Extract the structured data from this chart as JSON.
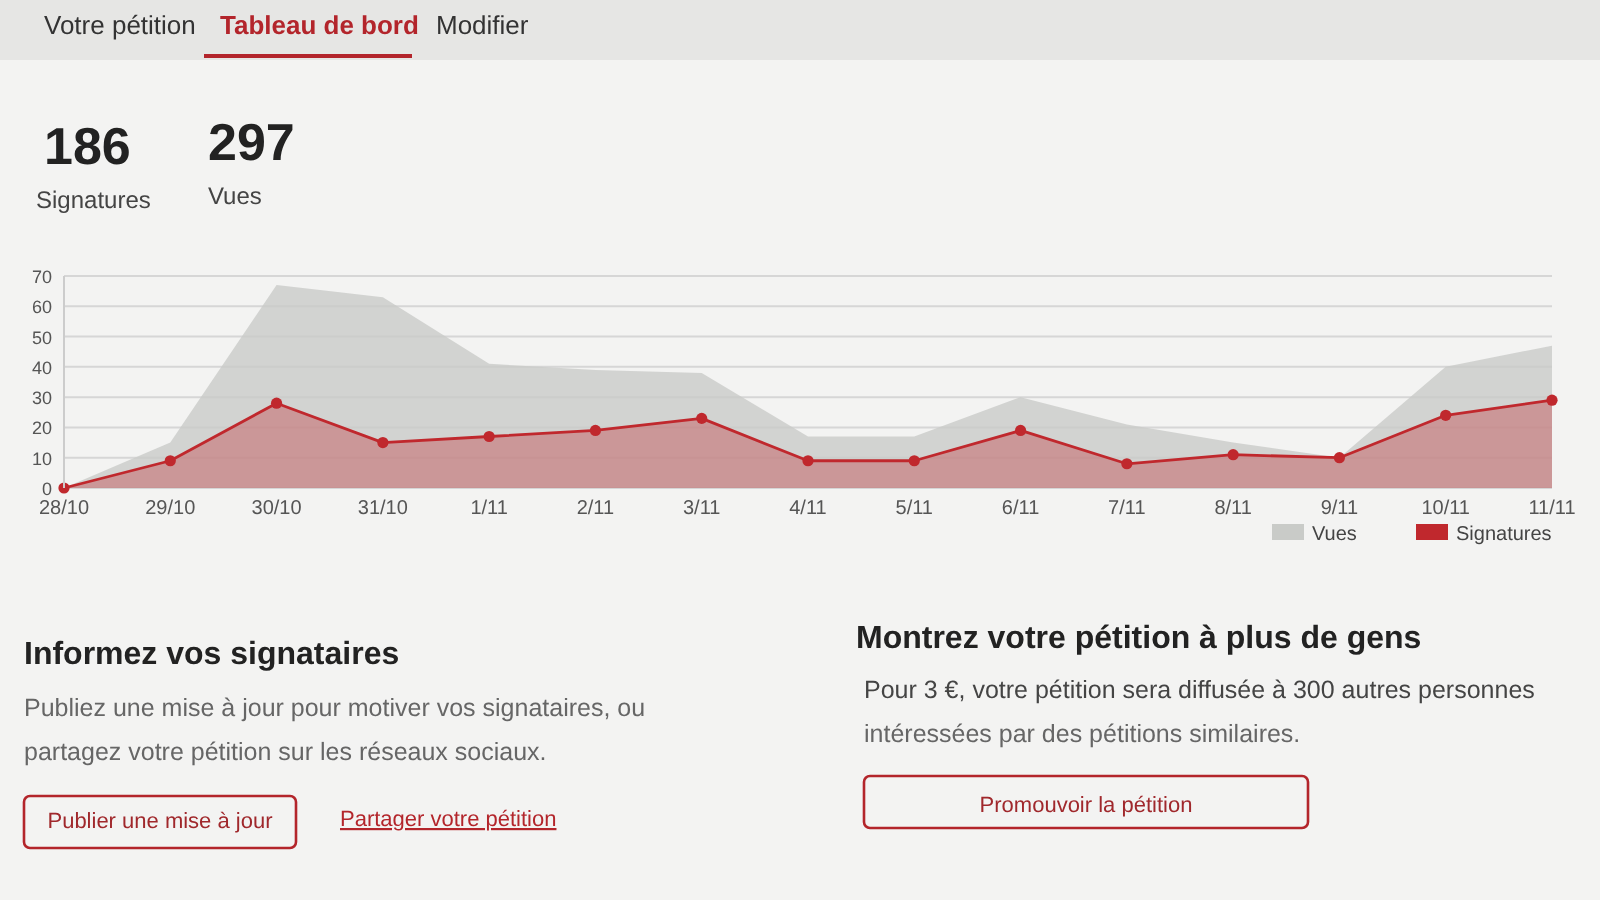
{
  "chart_data": {
    "type": "area",
    "categories": [
      "28/10",
      "29/10",
      "30/10",
      "31/10",
      "1/11",
      "2/11",
      "3/11",
      "4/11",
      "5/11",
      "6/11",
      "7/11",
      "8/11",
      "9/11",
      "10/11",
      "11/11"
    ],
    "series": [
      {
        "name": "Vues",
        "color": "#c9cbc8",
        "marker": "none",
        "values": [
          0,
          15,
          67,
          63,
          41,
          39,
          38,
          17,
          17,
          30,
          21,
          15,
          10,
          40,
          47
        ]
      },
      {
        "name": "Signatures",
        "color": "#c0282d",
        "marker": "circle",
        "values": [
          0,
          9,
          28,
          15,
          17,
          19,
          23,
          9,
          9,
          19,
          8,
          11,
          10,
          24,
          29
        ]
      }
    ],
    "ylim": [
      0,
      70
    ],
    "yticks": [
      0,
      10,
      20,
      30,
      40,
      50,
      60,
      70
    ],
    "grid": "y",
    "legend": "bottom right",
    "annotations": [
      "Votre pétition",
      "Tableau de bord",
      "Modifier",
      "186",
      "Signatures",
      "297",
      "Vues",
      "Informez vos signataires",
      "Publiez une mise à jour pour motiver vos signataires, ou",
      "partagez votre pétition sur les réseaux sociaux.",
      "Publier une mise à jour",
      "Partager votre pétition",
      "Montrez votre pétition à plus de gens",
      "Pour 3 €, votre pétition sera diffusée à 300 autres personnes",
      "intéressées par des pétitions similaires.",
      "Promouvoir la pétition"
    ]
  }
}
